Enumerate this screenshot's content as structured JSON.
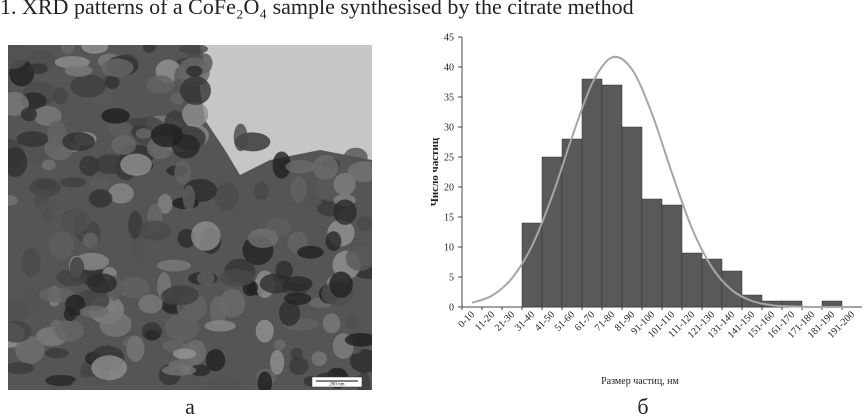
{
  "caption": "1. XRD patterns of a CoFe₂O₄ sample synthesised by the citrate method",
  "panel_a": {
    "label": "а",
    "scale_bar": "200 nm"
  },
  "chart_data": {
    "type": "bar",
    "panel_label": "б",
    "x_label": "Размер частиц, нм",
    "y_label": "Число частиц",
    "categories": [
      "0-10",
      "11-20",
      "21-30",
      "31-40",
      "41-50",
      "51-60",
      "61-70",
      "71-80",
      "81-90",
      "91-100",
      "101-110",
      "111-120",
      "121-130",
      "131-140",
      "141-150",
      "151-160",
      "161-170",
      "171-180",
      "181-190",
      "191-200"
    ],
    "series": [
      {
        "type": "bar",
        "color": "#595959",
        "values": [
          0,
          0,
          0,
          14,
          25,
          28,
          38,
          37,
          30,
          18,
          17,
          9,
          8,
          6,
          2,
          1,
          1,
          0,
          1,
          0
        ]
      },
      {
        "type": "line",
        "color": "#a6a6a6",
        "values": [
          0.7,
          1.9,
          4.8,
          10.2,
          18.4,
          28.3,
          37.2,
          41.6,
          39.6,
          32.2,
          22.3,
          13.1,
          6.6,
          2.8,
          1.0,
          0.3,
          0.1,
          0,
          0,
          0
        ]
      }
    ],
    "ylim": [
      0,
      45
    ],
    "yticks": [
      0,
      5,
      10,
      15,
      20,
      25,
      30,
      35,
      40,
      45
    ]
  }
}
